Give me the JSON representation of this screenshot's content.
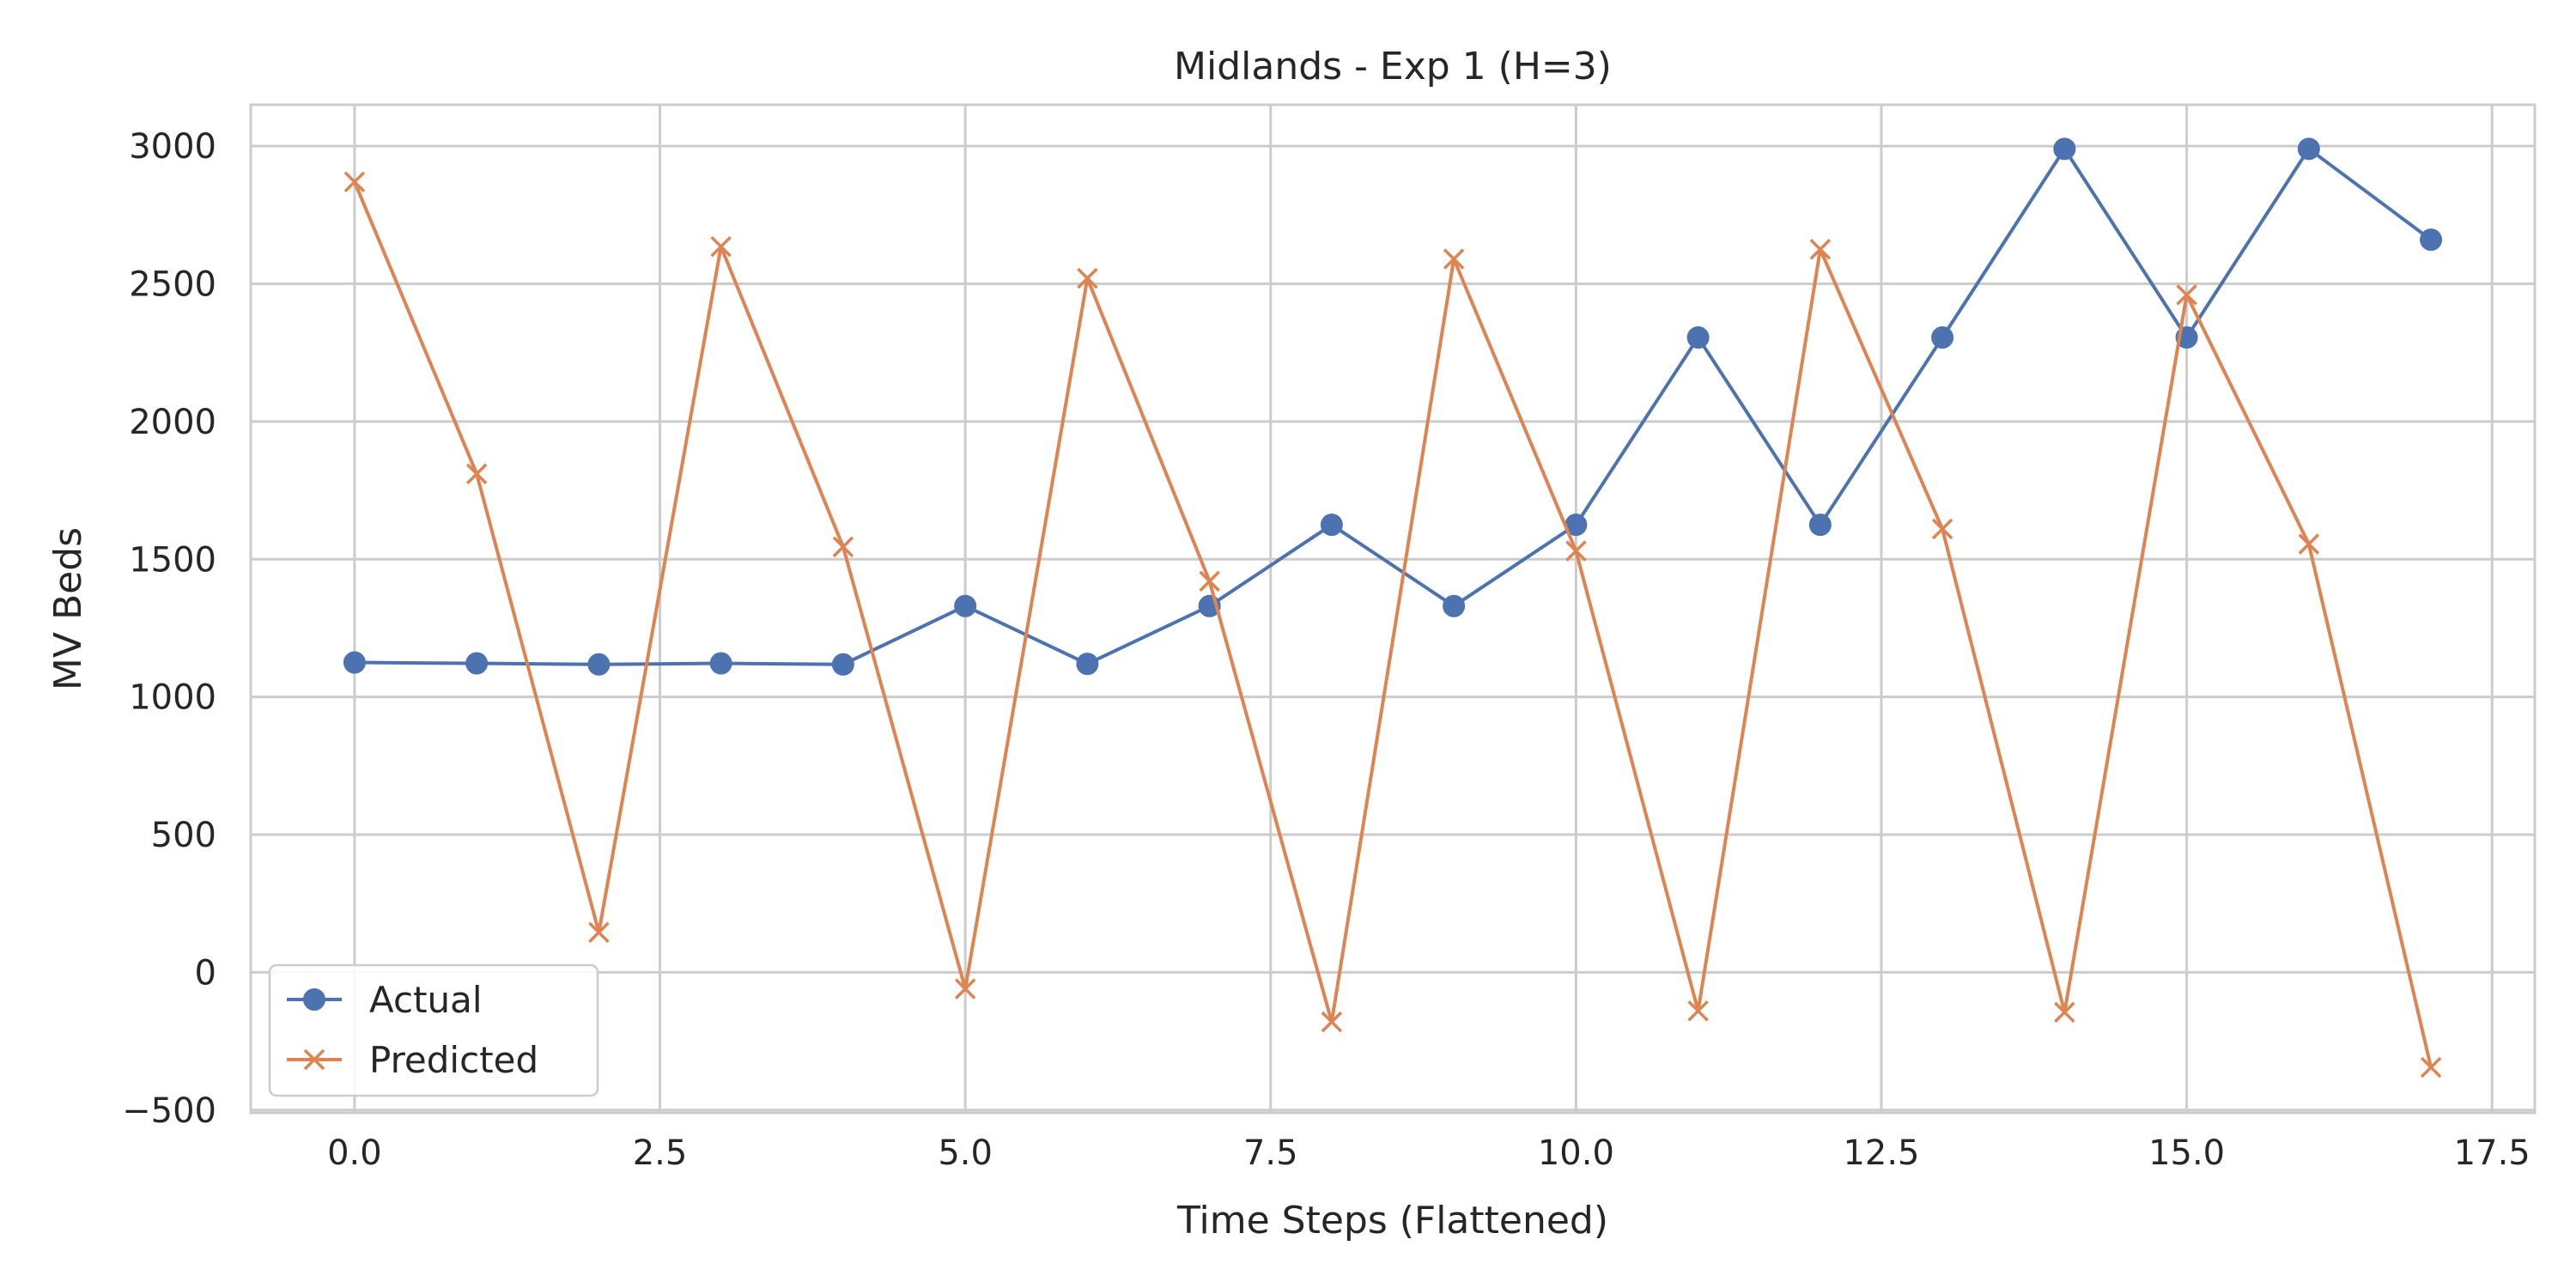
{
  "chart_data": {
    "type": "line",
    "title": "Midlands - Exp 1 (H=3)",
    "xlabel": "Time Steps (Flattened)",
    "ylabel": "MV Beds",
    "xlim": [
      -0.85,
      17.85
    ],
    "ylim": [
      -510,
      3150
    ],
    "xticks": [
      0.0,
      2.5,
      5.0,
      7.5,
      10.0,
      12.5,
      15.0,
      17.5
    ],
    "xtick_labels": [
      "0.0",
      "2.5",
      "5.0",
      "7.5",
      "10.0",
      "12.5",
      "15.0",
      "17.5"
    ],
    "yticks": [
      -500,
      0,
      500,
      1000,
      1500,
      2000,
      2500,
      3000
    ],
    "ytick_labels": [
      "−500",
      "0",
      "500",
      "1000",
      "1500",
      "2000",
      "2500",
      "3000"
    ],
    "grid": true,
    "legend_position": "bottom-left",
    "x": [
      0,
      1,
      2,
      3,
      4,
      5,
      6,
      7,
      8,
      9,
      10,
      11,
      12,
      13,
      14,
      15,
      16,
      17
    ],
    "series": [
      {
        "name": "Actual",
        "color": "#4c72b0",
        "marker": "circle",
        "values": [
          1125,
          1122,
          1118,
          1122,
          1118,
          1330,
          1120,
          1330,
          1625,
          1330,
          1625,
          2305,
          1625,
          2305,
          2990,
          2305,
          2990,
          2660
        ]
      },
      {
        "name": "Predicted",
        "color": "#dd8452",
        "marker": "x",
        "values": [
          2870,
          1810,
          145,
          2635,
          1545,
          -60,
          2520,
          1420,
          -180,
          2590,
          1530,
          -140,
          2625,
          1610,
          -145,
          2460,
          1555,
          -345
        ]
      }
    ]
  }
}
